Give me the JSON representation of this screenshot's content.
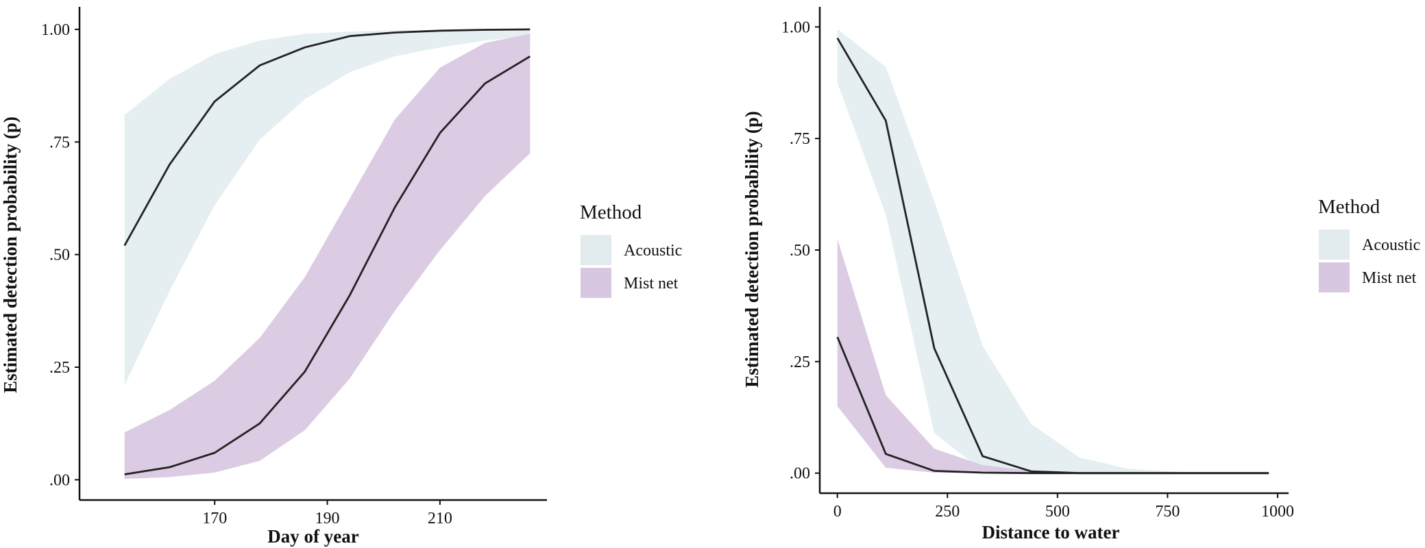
{
  "colors": {
    "acoustic_band": "#e2ecee",
    "mist_net_band": "#d8c7e0",
    "line": "#222222",
    "axis": "#111111"
  },
  "chart_data": [
    {
      "type": "line",
      "xlabel": "Day of year",
      "ylabel": "Estimated detection probability (p)",
      "xlim": [
        146,
        229
      ],
      "ylim": [
        -0.045,
        1.05
      ],
      "xticks": [
        170,
        190,
        210
      ],
      "xtick_labels": [
        "170",
        "190",
        "210"
      ],
      "yticks": [
        0,
        0.25,
        0.5,
        0.75,
        1.0
      ],
      "ytick_labels": [
        ".00",
        ".25",
        ".50",
        ".75",
        "1.00"
      ],
      "grid": false,
      "legend": {
        "position": "right",
        "title": "Method",
        "entries": [
          "Acoustic",
          "Mist net"
        ]
      },
      "x": [
        154,
        162,
        170,
        178,
        186,
        194,
        202,
        210,
        218,
        226
      ],
      "series": [
        {
          "name": "Acoustic",
          "values": [
            0.52,
            0.7,
            0.84,
            0.92,
            0.96,
            0.985,
            0.993,
            0.997,
            0.999,
            1.0
          ],
          "lower": [
            0.21,
            0.42,
            0.61,
            0.755,
            0.845,
            0.905,
            0.94,
            0.96,
            0.975,
            0.985
          ],
          "upper": [
            0.81,
            0.89,
            0.945,
            0.975,
            0.99,
            0.995,
            0.998,
            0.999,
            1.0,
            1.0
          ]
        },
        {
          "name": "Mist net",
          "values": [
            0.012,
            0.028,
            0.06,
            0.125,
            0.24,
            0.41,
            0.605,
            0.77,
            0.88,
            0.94
          ],
          "lower": [
            0.002,
            0.006,
            0.016,
            0.042,
            0.11,
            0.225,
            0.375,
            0.51,
            0.63,
            0.725
          ],
          "upper": [
            0.105,
            0.155,
            0.22,
            0.315,
            0.45,
            0.625,
            0.8,
            0.915,
            0.97,
            0.99
          ]
        }
      ]
    },
    {
      "type": "line",
      "xlabel": "Distance to water",
      "ylabel": "Estimated detection probability (p)",
      "xlim": [
        -40,
        1025
      ],
      "ylim": [
        -0.045,
        1.045
      ],
      "xticks": [
        0,
        250,
        500,
        750,
        1000
      ],
      "xtick_labels": [
        "0",
        "250",
        "500",
        "750",
        "1000"
      ],
      "yticks": [
        0,
        0.25,
        0.5,
        0.75,
        1.0
      ],
      "ytick_labels": [
        ".00",
        ".25",
        ".50",
        ".75",
        "1.00"
      ],
      "grid": false,
      "legend": {
        "position": "right",
        "title": "Method",
        "entries": [
          "Acoustic",
          "Mist net"
        ]
      },
      "x": [
        0,
        110,
        220,
        330,
        440,
        550,
        660,
        770,
        880,
        980
      ],
      "series": [
        {
          "name": "Acoustic",
          "values": [
            0.975,
            0.79,
            0.28,
            0.038,
            0.004,
            0.0,
            0.0,
            0.0,
            0.0,
            0.0
          ],
          "lower": [
            0.875,
            0.58,
            0.09,
            0.005,
            0.0,
            0.0,
            0.0,
            0.0,
            0.0,
            0.0
          ],
          "upper": [
            0.995,
            0.91,
            0.61,
            0.285,
            0.11,
            0.035,
            0.01,
            0.003,
            0.001,
            0.0
          ]
        },
        {
          "name": "Mist net",
          "values": [
            0.305,
            0.043,
            0.005,
            0.001,
            0.0,
            0.0,
            0.0,
            0.0,
            0.0,
            0.0
          ],
          "lower": [
            0.15,
            0.012,
            0.001,
            0.0,
            0.0,
            0.0,
            0.0,
            0.0,
            0.0,
            0.0
          ],
          "upper": [
            0.525,
            0.175,
            0.055,
            0.018,
            0.005,
            0.001,
            0.0,
            0.0,
            0.0,
            0.0
          ]
        }
      ]
    }
  ]
}
